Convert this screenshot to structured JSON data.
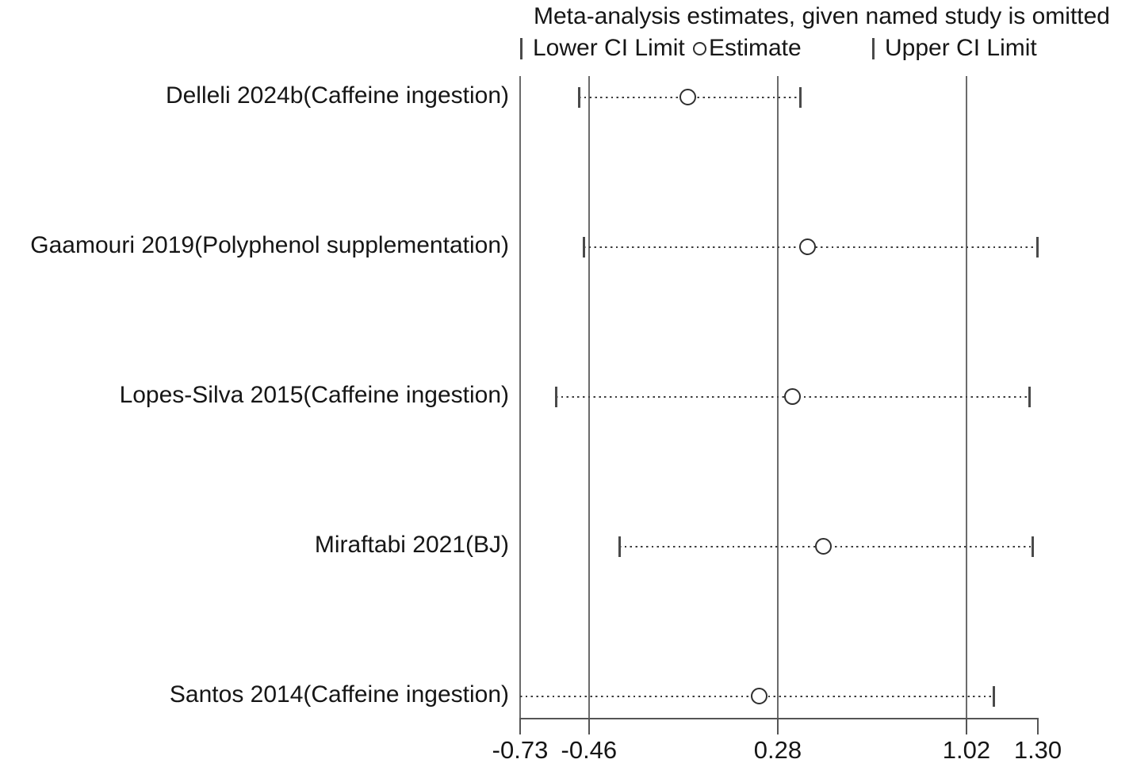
{
  "figure": {
    "title": "Meta-analysis estimates, given named study is omitted",
    "legend": {
      "lower_label": "Lower CI Limit",
      "estimate_label": "Estimate",
      "upper_label": "Upper CI Limit"
    }
  },
  "chart_data": {
    "type": "scatter",
    "subtype": "leave-one-out-forest-plot",
    "title": "Meta-analysis estimates, given named study is omitted",
    "xlabel": "",
    "ylabel": "",
    "xlim": [
      -0.73,
      1.3
    ],
    "x_ticks": [
      -0.73,
      -0.46,
      0.28,
      1.02,
      1.3
    ],
    "x_tick_labels": [
      "-0.73",
      "-0.46",
      "0.28",
      "1.02",
      "1.30"
    ],
    "grid": false,
    "legend_position": "top",
    "reference_lines": {
      "overall_lower_ci": -0.46,
      "overall_estimate": 0.28,
      "overall_upper_ci": 1.02
    },
    "studies": [
      {
        "label": "Delleli 2024b(Caffeine ingestion)",
        "lower": -0.5,
        "estimate": -0.07,
        "upper": 0.37,
        "lower_clipped": false
      },
      {
        "label": "Gaamouri 2019(Polyphenol supplementation)",
        "lower": -0.48,
        "estimate": 0.4,
        "upper": 1.3,
        "lower_clipped": false
      },
      {
        "label": "Lopes-Silva 2015(Caffeine ingestion)",
        "lower": -0.59,
        "estimate": 0.34,
        "upper": 1.27,
        "lower_clipped": false
      },
      {
        "label": "Miraftabi 2021(BJ)",
        "lower": -0.34,
        "estimate": 0.46,
        "upper": 1.28,
        "lower_clipped": false
      },
      {
        "label": "Santos 2014(Caffeine ingestion)",
        "lower": -0.73,
        "estimate": 0.21,
        "upper": 1.13,
        "lower_clipped": true
      }
    ],
    "colors": {
      "reference_line": "#6b6b6b",
      "axis": "#555555",
      "ci_dots": "#3c3c3c",
      "ci_cap": "#4a4a4a",
      "marker_stroke": "#2f2f2f",
      "text": "#161616"
    }
  }
}
